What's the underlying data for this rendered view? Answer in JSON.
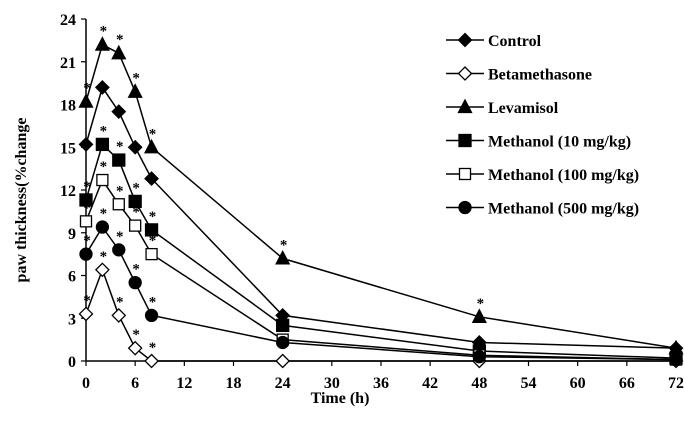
{
  "chart_data": {
    "type": "line",
    "title": "",
    "xlabel": "Time (h)",
    "ylabel": "paw thickness(%change",
    "xlim": [
      0,
      72
    ],
    "ylim": [
      0,
      24
    ],
    "x_ticks": [
      "0",
      "6",
      "12",
      "18",
      "24",
      "30",
      "36",
      "42",
      "48",
      "54",
      "60",
      "66",
      "72"
    ],
    "y_ticks": [
      "0",
      "3",
      "6",
      "9",
      "12",
      "15",
      "18",
      "21",
      "24"
    ],
    "grid": false,
    "legend_position": "top-right",
    "significance_marker": "*",
    "series": [
      {
        "name": "Control",
        "marker": "diamond-filled",
        "x": [
          0,
          2,
          4,
          6,
          8,
          24,
          48,
          72
        ],
        "y": [
          15.2,
          19.2,
          17.5,
          15.0,
          12.8,
          3.2,
          1.3,
          0.9
        ],
        "starred": [
          false,
          false,
          false,
          false,
          false,
          false,
          false,
          false
        ]
      },
      {
        "name": "Betamethasone",
        "marker": "diamond-open",
        "x": [
          0,
          2,
          4,
          6,
          8,
          24,
          48,
          72
        ],
        "y": [
          3.3,
          6.4,
          3.2,
          0.9,
          0.0,
          0.0,
          0.0,
          0.0
        ],
        "starred": [
          true,
          true,
          true,
          true,
          true,
          true,
          false,
          false
        ]
      },
      {
        "name": "Levamisol",
        "marker": "triangle-filled",
        "x": [
          0,
          2,
          4,
          6,
          8,
          24,
          48,
          72
        ],
        "y": [
          18.2,
          22.2,
          21.6,
          18.9,
          15.0,
          7.2,
          3.1,
          0.9
        ],
        "starred": [
          true,
          true,
          true,
          true,
          true,
          true,
          true,
          false
        ]
      },
      {
        "name": "Methanol (10 mg/kg)",
        "marker": "square-filled",
        "x": [
          0,
          2,
          4,
          6,
          8,
          24,
          48,
          72
        ],
        "y": [
          11.3,
          15.2,
          14.1,
          11.2,
          9.2,
          2.5,
          0.7,
          0.2
        ],
        "starred": [
          true,
          true,
          true,
          true,
          true,
          false,
          false,
          false
        ]
      },
      {
        "name": "Methanol (100 mg/kg)",
        "marker": "square-open",
        "x": [
          0,
          2,
          4,
          6,
          8,
          24,
          48,
          72
        ],
        "y": [
          9.8,
          12.7,
          11.0,
          9.5,
          7.5,
          1.5,
          0.4,
          0.1
        ],
        "starred": [
          true,
          true,
          true,
          true,
          true,
          false,
          false,
          false
        ]
      },
      {
        "name": "Methanol (500 mg/kg)",
        "marker": "circle-filled",
        "x": [
          0,
          2,
          4,
          6,
          8,
          24,
          48,
          72
        ],
        "y": [
          7.5,
          9.4,
          7.8,
          5.5,
          3.2,
          1.3,
          0.3,
          0.1
        ],
        "starred": [
          true,
          true,
          true,
          true,
          true,
          false,
          false,
          false
        ]
      }
    ]
  }
}
